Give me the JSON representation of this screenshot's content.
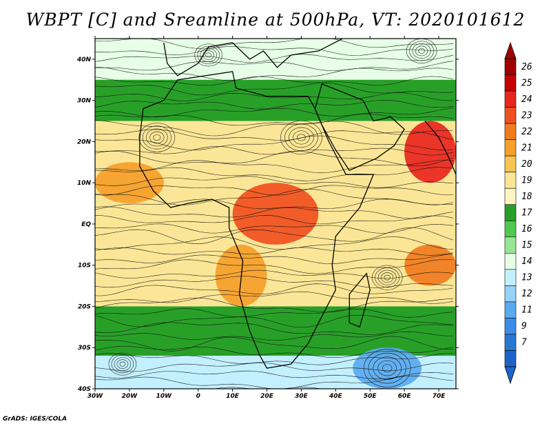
{
  "title": "WBPT [C] and Sreamline at 500hPa, VT: 2020101612",
  "footer": "GrADS: IGES/COLA",
  "map": {
    "lon_range": [
      -30,
      75
    ],
    "lat_range": [
      -40,
      45
    ],
    "lat_ticks": [
      {
        "value": 40,
        "label": "40N"
      },
      {
        "value": 30,
        "label": "30N"
      },
      {
        "value": 20,
        "label": "20N"
      },
      {
        "value": 10,
        "label": "10N"
      },
      {
        "value": 0,
        "label": "EQ"
      },
      {
        "value": -10,
        "label": "10S"
      },
      {
        "value": -20,
        "label": "20S"
      },
      {
        "value": -30,
        "label": "30S"
      },
      {
        "value": -40,
        "label": "40S"
      }
    ],
    "lon_ticks": [
      {
        "value": -30,
        "label": "30W"
      },
      {
        "value": -20,
        "label": "20W"
      },
      {
        "value": -10,
        "label": "10W"
      },
      {
        "value": 0,
        "label": "0"
      },
      {
        "value": 10,
        "label": "10E"
      },
      {
        "value": 20,
        "label": "20E"
      },
      {
        "value": 30,
        "label": "30E"
      },
      {
        "value": 40,
        "label": "40E"
      },
      {
        "value": 50,
        "label": "50E"
      },
      {
        "value": 60,
        "label": "60E"
      },
      {
        "value": 70,
        "label": "70E"
      }
    ]
  },
  "colorbar": {
    "labels": [
      "26",
      "25",
      "24",
      "23",
      "22",
      "21",
      "20",
      "19",
      "18",
      "17",
      "16",
      "15",
      "14",
      "13",
      "12",
      "11",
      "9",
      "7"
    ],
    "colors": [
      "#a00000",
      "#c80000",
      "#e8261e",
      "#f05020",
      "#f07c1e",
      "#f5a02a",
      "#f6c552",
      "#fae696",
      "#fff5c3",
      "#28a028",
      "#50c850",
      "#96e696",
      "#e6ffe6",
      "#c3f0ff",
      "#96d2fa",
      "#5aaaf0",
      "#3c8ce6",
      "#2878d2",
      "#1e64c8"
    ]
  },
  "chart_data": {
    "type": "heatmap",
    "variable": "WBPT [C]",
    "level": "500hPa",
    "valid_time": "2020101612",
    "x_range": [
      -30,
      75
    ],
    "y_range": [
      -40,
      45
    ],
    "regions": [
      {
        "lon": [
          -30,
          75
        ],
        "lat": [
          35,
          45
        ],
        "value": 14
      },
      {
        "lon": [
          -30,
          75
        ],
        "lat": [
          25,
          35
        ],
        "value": 17
      },
      {
        "lon": [
          -30,
          75
        ],
        "lat": [
          -5,
          25
        ],
        "value": 19
      },
      {
        "lon": [
          -30,
          75
        ],
        "lat": [
          -20,
          -5
        ],
        "value": 19
      },
      {
        "lon": [
          -30,
          75
        ],
        "lat": [
          -32,
          -20
        ],
        "value": 17
      },
      {
        "lon": [
          -30,
          75
        ],
        "lat": [
          -40,
          -32
        ],
        "value": 13
      },
      {
        "lon": [
          10,
          35
        ],
        "lat": [
          -5,
          10
        ],
        "value": 23
      },
      {
        "lon": [
          60,
          75
        ],
        "lat": [
          10,
          25
        ],
        "value": 24
      },
      {
        "lon": [
          -30,
          -10
        ],
        "lat": [
          5,
          15
        ],
        "value": 21
      },
      {
        "lon": [
          60,
          75
        ],
        "lat": [
          -15,
          -5
        ],
        "value": 22
      },
      {
        "lon": [
          45,
          65
        ],
        "lat": [
          -40,
          -30
        ],
        "value": 11
      },
      {
        "lon": [
          5,
          20
        ],
        "lat": [
          -20,
          -5
        ],
        "value": 21
      }
    ]
  }
}
